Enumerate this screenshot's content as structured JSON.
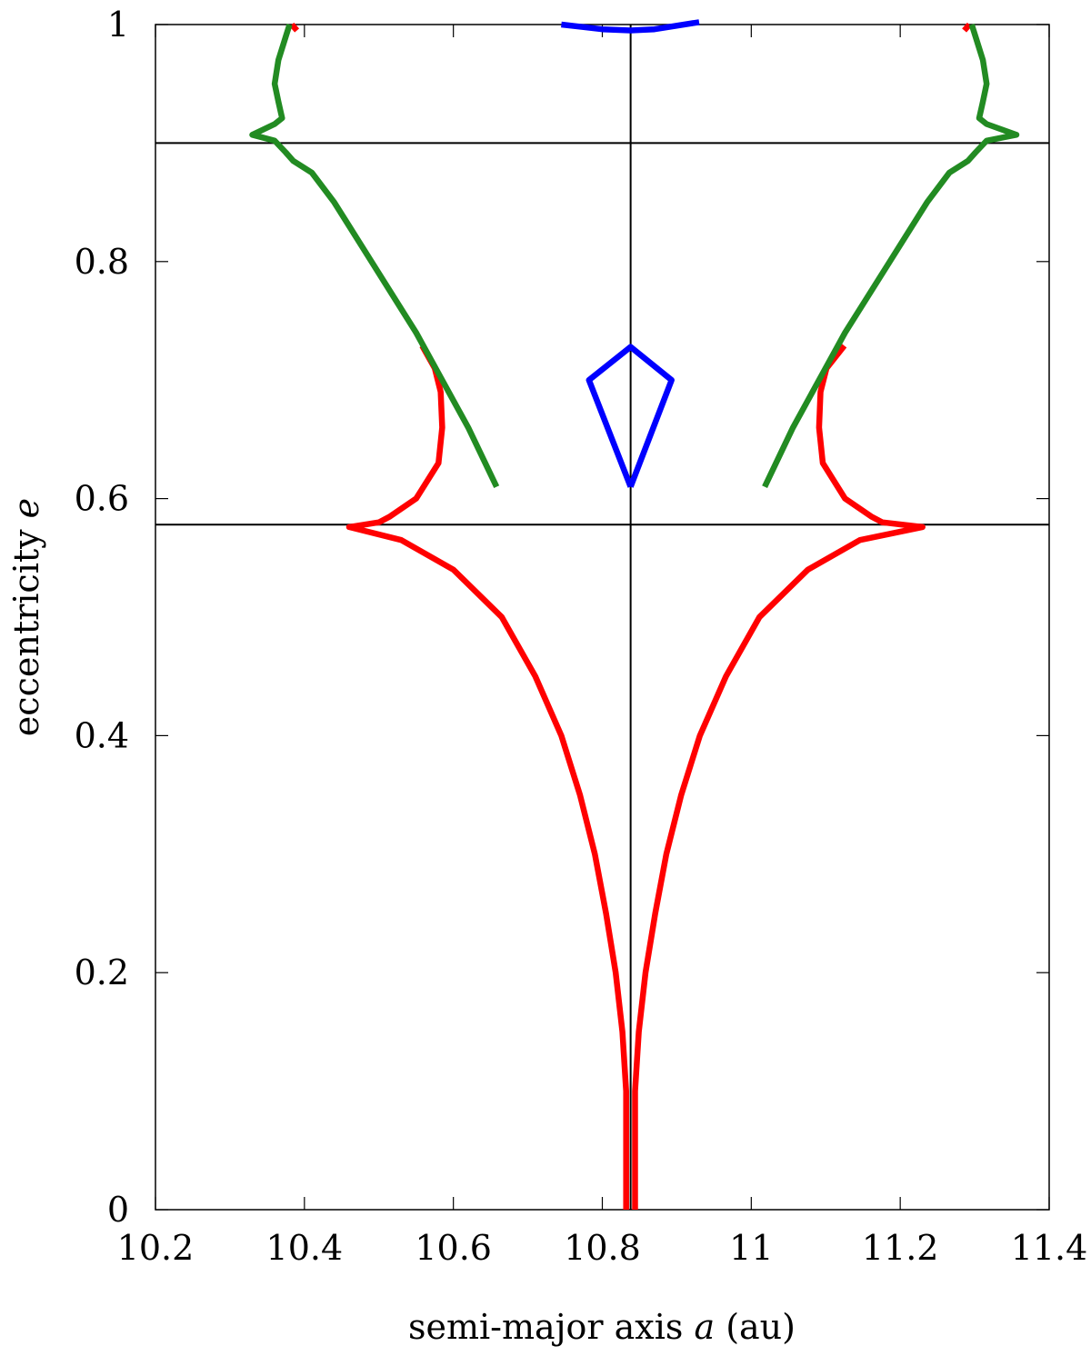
{
  "chart_data": {
    "type": "line",
    "xlabel": "semi-major axis",
    "xlabel_var": "a",
    "xlabel_unit": "(au)",
    "ylabel": "eccentricity",
    "ylabel_var": "e",
    "xlim": [
      10.2,
      11.4
    ],
    "ylim": [
      0,
      1
    ],
    "xticks": [
      10.2,
      10.4,
      10.6,
      10.8,
      11,
      11.2,
      11.4
    ],
    "xtick_labels": [
      "10.2",
      "10.4",
      "10.6",
      "10.8",
      "11",
      "11.2",
      "11.4"
    ],
    "yticks": [
      0,
      0.2,
      0.4,
      0.6,
      0.8,
      1
    ],
    "ytick_labels": [
      "0",
      "0.2",
      "0.4",
      "0.6",
      "0.8",
      "1"
    ],
    "grid": false,
    "reference_lines": {
      "vertical_x": 10.838,
      "horizontal_y": [
        0.578,
        0.9
      ]
    },
    "series": [
      {
        "color": "#ff0000",
        "segments": [
          [
            [
              10.832,
              0.0
            ],
            [
              10.832,
              0.1
            ],
            [
              10.827,
              0.15
            ],
            [
              10.818,
              0.2
            ],
            [
              10.805,
              0.25
            ],
            [
              10.79,
              0.3
            ],
            [
              10.77,
              0.35
            ],
            [
              10.745,
              0.4
            ],
            [
              10.71,
              0.45
            ],
            [
              10.665,
              0.5
            ],
            [
              10.6,
              0.54
            ],
            [
              10.53,
              0.565
            ],
            [
              10.46,
              0.576
            ],
            [
              10.5,
              0.58
            ],
            [
              10.515,
              0.585
            ],
            [
              10.55,
              0.6
            ],
            [
              10.58,
              0.63
            ],
            [
              10.585,
              0.66
            ],
            [
              10.583,
              0.69
            ],
            [
              10.575,
              0.71
            ],
            [
              10.558,
              0.729
            ]
          ],
          [
            [
              10.844,
              0.0
            ],
            [
              10.844,
              0.1
            ],
            [
              10.849,
              0.15
            ],
            [
              10.858,
              0.2
            ],
            [
              10.871,
              0.25
            ],
            [
              10.886,
              0.3
            ],
            [
              10.906,
              0.35
            ],
            [
              10.931,
              0.4
            ],
            [
              10.966,
              0.45
            ],
            [
              11.011,
              0.5
            ],
            [
              11.076,
              0.54
            ],
            [
              11.146,
              0.565
            ],
            [
              11.23,
              0.576
            ],
            [
              11.176,
              0.58
            ],
            [
              11.161,
              0.585
            ],
            [
              11.126,
              0.6
            ],
            [
              11.096,
              0.63
            ],
            [
              11.091,
              0.66
            ],
            [
              11.093,
              0.69
            ],
            [
              11.101,
              0.71
            ],
            [
              11.125,
              0.729
            ]
          ],
          [
            [
              10.383,
              1.0
            ],
            [
              10.39,
              0.995
            ]
          ],
          [
            [
              11.293,
              1.0
            ],
            [
              11.286,
              0.995
            ]
          ]
        ]
      },
      {
        "color": "#228b22",
        "segments": [
          [
            [
              10.658,
              0.61
            ],
            [
              10.62,
              0.66
            ],
            [
              10.55,
              0.74
            ],
            [
              10.49,
              0.8
            ],
            [
              10.44,
              0.85
            ],
            [
              10.41,
              0.875
            ],
            [
              10.385,
              0.885
            ],
            [
              10.375,
              0.892
            ],
            [
              10.36,
              0.902
            ],
            [
              10.33,
              0.907
            ],
            [
              10.36,
              0.916
            ],
            [
              10.37,
              0.921
            ],
            [
              10.365,
              0.935
            ],
            [
              10.36,
              0.95
            ],
            [
              10.365,
              0.97
            ],
            [
              10.375,
              0.99
            ],
            [
              10.38,
              1.0
            ]
          ],
          [
            [
              11.018,
              0.61
            ],
            [
              11.056,
              0.66
            ],
            [
              11.126,
              0.74
            ],
            [
              11.186,
              0.8
            ],
            [
              11.236,
              0.85
            ],
            [
              11.266,
              0.875
            ],
            [
              11.291,
              0.885
            ],
            [
              11.301,
              0.892
            ],
            [
              11.316,
              0.902
            ],
            [
              11.356,
              0.907
            ],
            [
              11.316,
              0.916
            ],
            [
              11.306,
              0.921
            ],
            [
              11.311,
              0.935
            ],
            [
              11.316,
              0.95
            ],
            [
              11.311,
              0.97
            ],
            [
              11.301,
              0.99
            ],
            [
              11.296,
              1.0
            ]
          ]
        ]
      },
      {
        "color": "#0000ff",
        "segments": [
          [
            [
              10.838,
              0.61
            ],
            [
              10.782,
              0.7
            ],
            [
              10.838,
              0.728
            ],
            [
              10.893,
              0.7
            ],
            [
              10.838,
              0.61
            ]
          ],
          [
            [
              10.745,
              1.0
            ],
            [
              10.8,
              0.996
            ],
            [
              10.838,
              0.995
            ],
            [
              10.87,
              0.996
            ],
            [
              10.93,
              1.002
            ]
          ]
        ]
      }
    ]
  }
}
